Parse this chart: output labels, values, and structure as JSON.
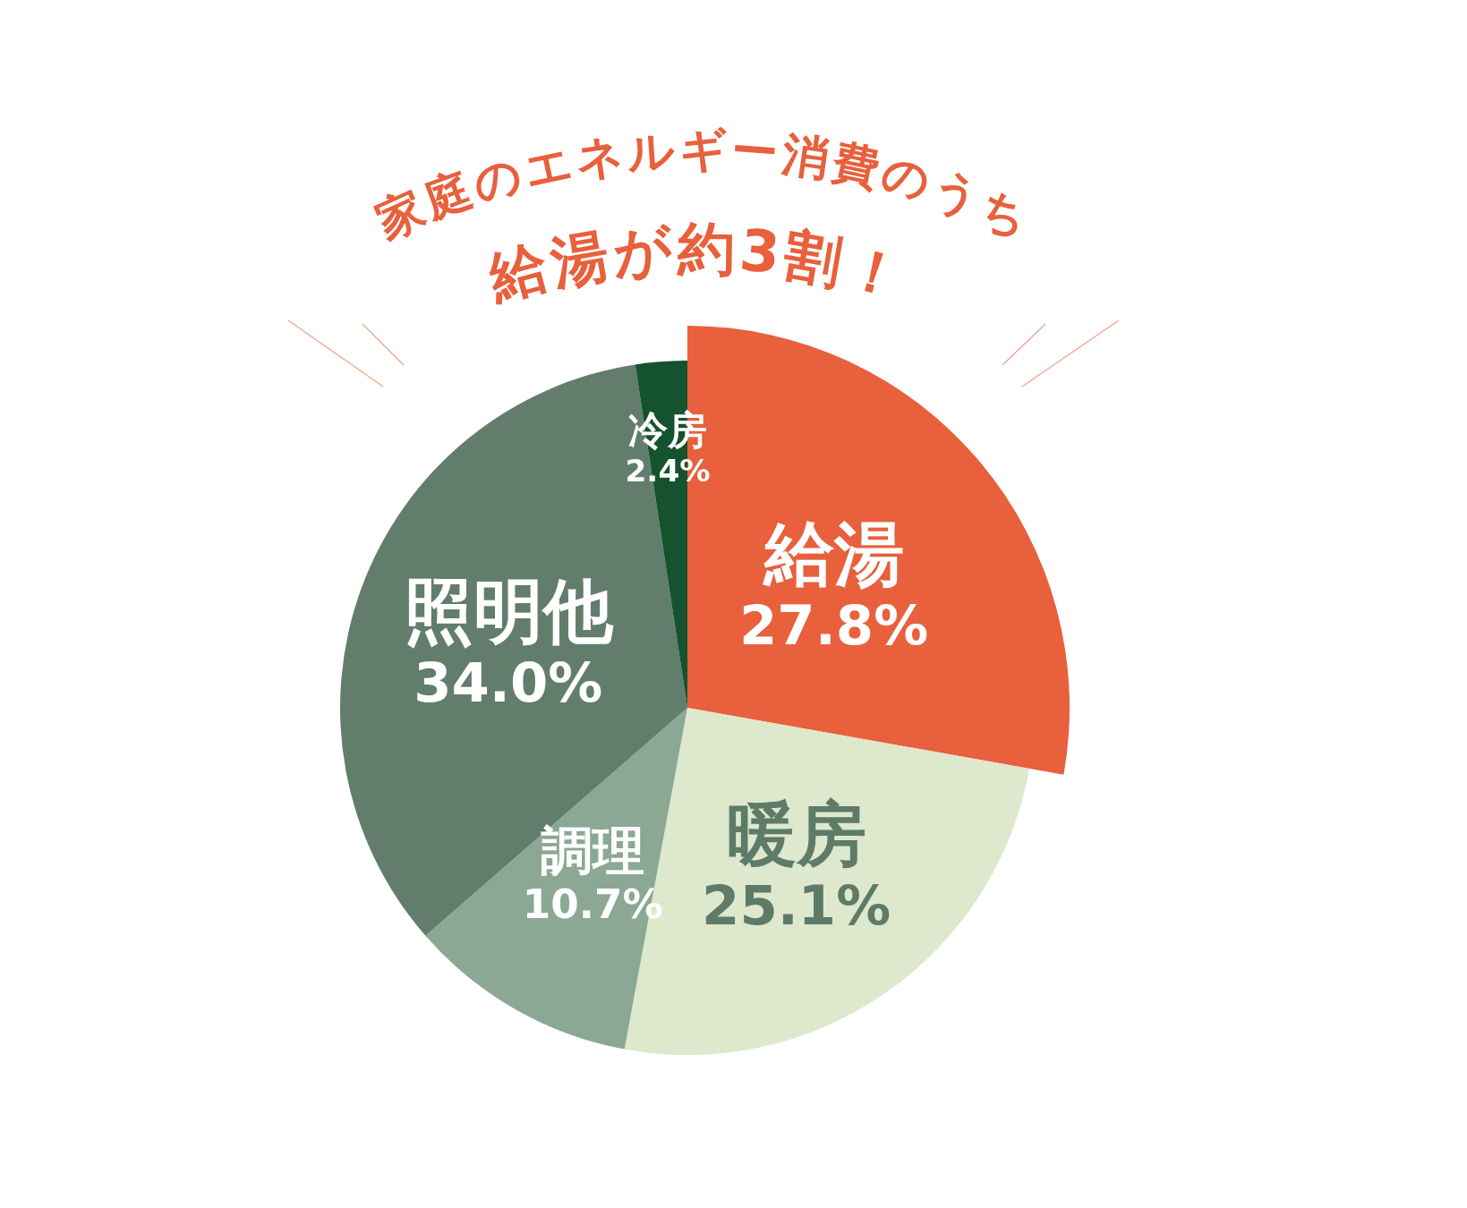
{
  "chart_data": {
    "type": "pie",
    "title": "家庭のエネルギー消費のうち",
    "subtitle": "給湯が約3割！",
    "categories": [
      "給湯",
      "暖房",
      "調理",
      "照明他",
      "冷房"
    ],
    "values": [
      27.8,
      25.1,
      10.7,
      34.0,
      2.4
    ],
    "colors": [
      "#e8603c",
      "#dde8cc",
      "#8aa893",
      "#627d6c",
      "#14532d"
    ],
    "value_labels": [
      "27.8%",
      "25.1%",
      "10.7%",
      "34.0%",
      "2.4%"
    ]
  }
}
